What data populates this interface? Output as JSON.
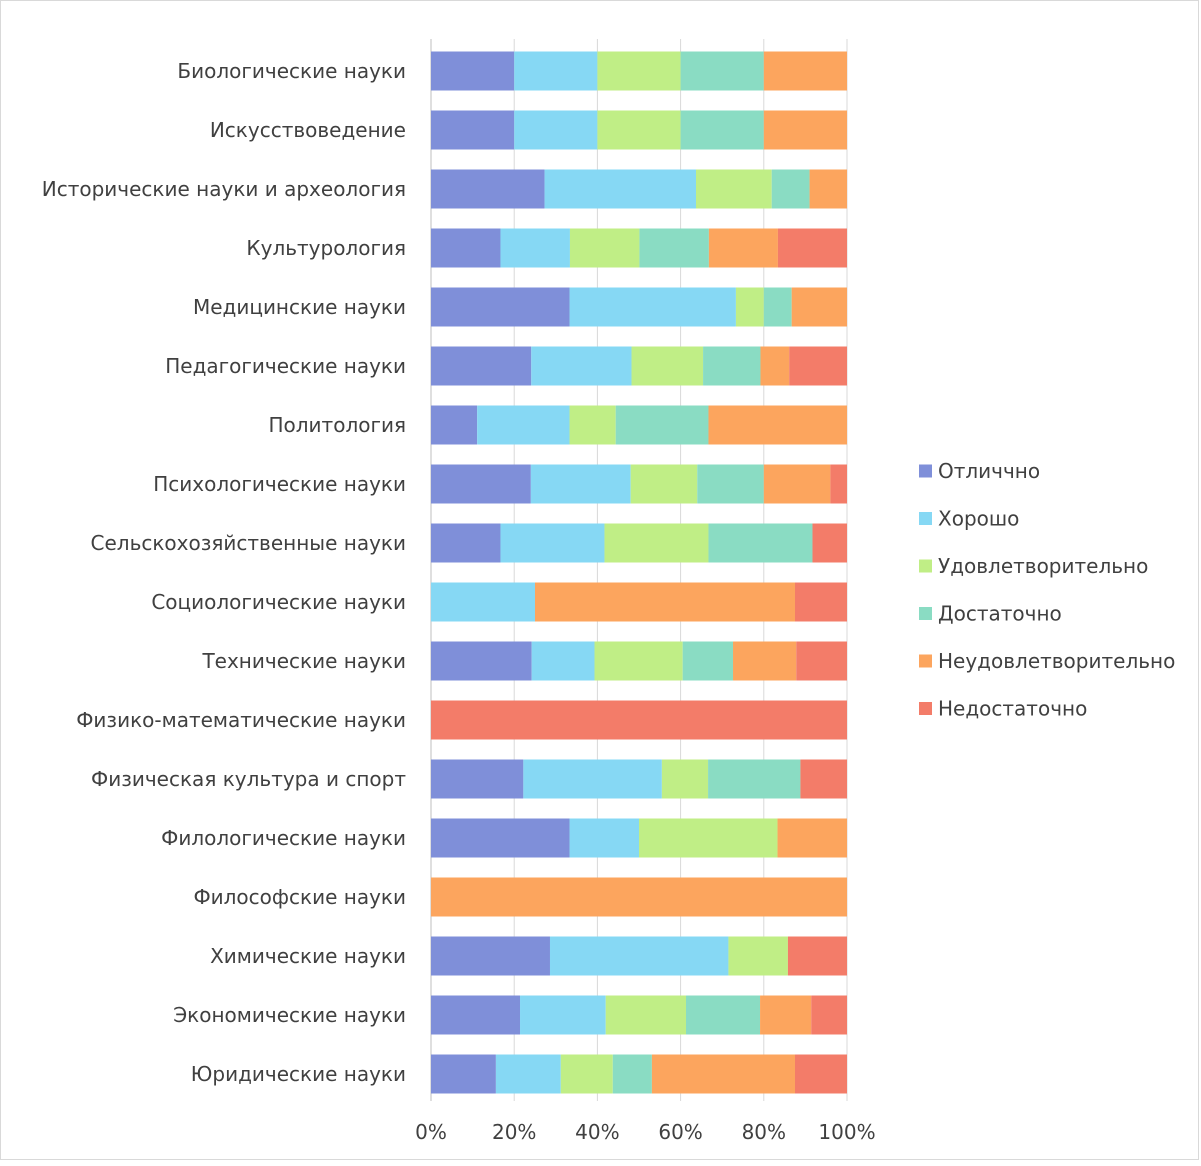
{
  "chart_data": {
    "type": "bar",
    "orientation": "horizontal",
    "stacked": "percent",
    "categories": [
      "Биологические науки",
      "Искусствоведение",
      "Исторические науки и археология",
      "Культурология",
      "Медицинские науки",
      "Педагогические науки",
      "Политология",
      "Психологические науки",
      "Сельскохозяйственные науки",
      "Социологические науки",
      "Технические науки",
      "Физико-математические науки",
      "Физическая культура и спорт",
      "Филологические науки",
      "Философские науки",
      "Химические науки",
      "Экономические науки",
      "Юридические науки"
    ],
    "series": [
      {
        "name": "Отличчно",
        "color": "#7f8fd9",
        "values": [
          20,
          20,
          27.3,
          16.7,
          33.3,
          24.1,
          11.1,
          24,
          16.7,
          0,
          24.2,
          0,
          22.2,
          33.3,
          0,
          28.6,
          21.4,
          15.6
        ]
      },
      {
        "name": "Хорошо",
        "color": "#86d8f4",
        "values": [
          20,
          20,
          36.4,
          16.7,
          40,
          24.1,
          22.2,
          24,
          25,
          25,
          15.1,
          0,
          33.3,
          16.7,
          0,
          42.9,
          20.6,
          15.6
        ]
      },
      {
        "name": "Удовлетворительно",
        "color": "#c0ee86",
        "values": [
          20,
          20,
          18.2,
          16.7,
          6.7,
          17.2,
          11.1,
          16,
          25,
          0,
          21.2,
          0,
          11.1,
          33.3,
          0,
          14.3,
          19.3,
          12.5
        ]
      },
      {
        "name": "Достаточно",
        "color": "#8adcc3",
        "values": [
          20,
          20,
          9.1,
          16.7,
          6.7,
          13.8,
          22.3,
          16,
          25,
          0,
          12.1,
          0,
          22.2,
          0,
          0,
          0,
          17.8,
          9.4
        ]
      },
      {
        "name": "Неудовлетворительно",
        "color": "#fca55e",
        "values": [
          20,
          20,
          9,
          16.6,
          13.3,
          6.9,
          33.3,
          16,
          0,
          62.5,
          15.2,
          0,
          0,
          16.7,
          100,
          0,
          12.3,
          34.4
        ]
      },
      {
        "name": "Недостаточно",
        "color": "#f37c69",
        "values": [
          0,
          0,
          0,
          16.6,
          0,
          13.9,
          0,
          4,
          8.3,
          12.5,
          12.2,
          100,
          11.2,
          0,
          0,
          14.2,
          8.6,
          12.5
        ]
      }
    ],
    "xlim": [
      0,
      100
    ],
    "xticks": [
      "0%",
      "20%",
      "40%",
      "60%",
      "80%",
      "100%"
    ],
    "grid": true,
    "legend_position": "right"
  }
}
